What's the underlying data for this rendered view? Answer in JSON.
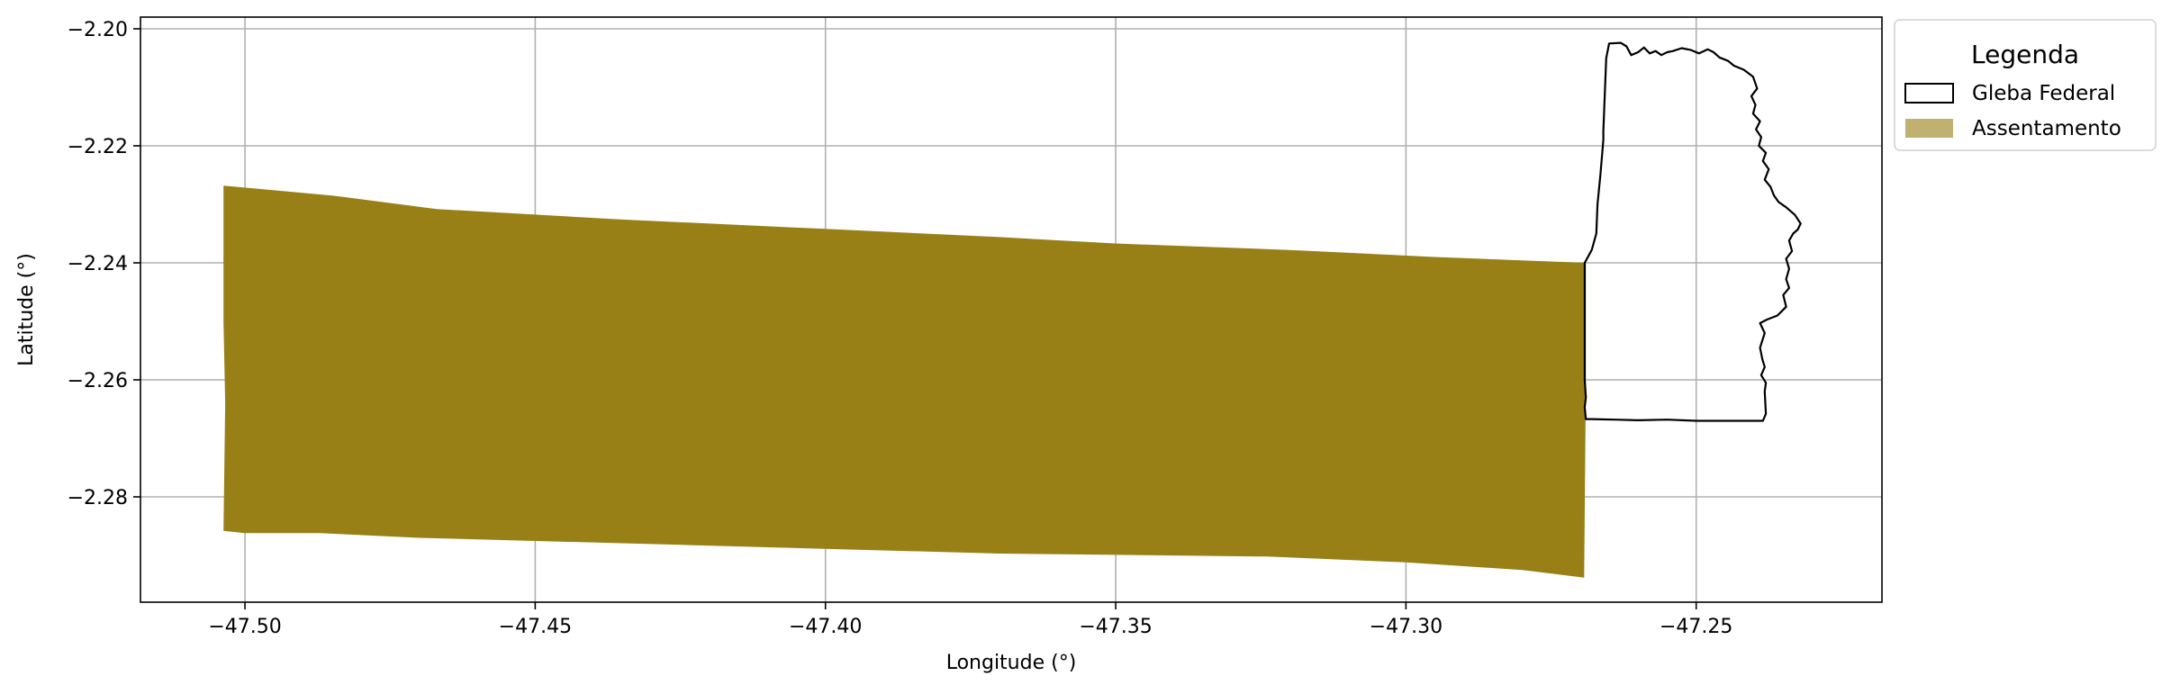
{
  "chart_data": {
    "type": "map",
    "xlabel": "Longitude (°)",
    "ylabel": "Latitude (°)",
    "xlim": [
      -47.518,
      -47.218
    ],
    "ylim": [
      -2.298,
      -2.198
    ],
    "xticks": [
      -47.5,
      -47.45,
      -47.4,
      -47.35,
      -47.3,
      -47.25
    ],
    "xtick_labels": [
      "−47.50",
      "−47.45",
      "−47.40",
      "−47.35",
      "−47.30",
      "−47.25"
    ],
    "yticks": [
      -2.2,
      -2.22,
      -2.24,
      -2.26,
      -2.28
    ],
    "ytick_labels": [
      "−2.20",
      "−2.22",
      "−2.24",
      "−2.26",
      "−2.28"
    ],
    "grid": true,
    "legend": {
      "title": "Legenda",
      "placement": "outside-upper-right",
      "entries": [
        {
          "label": "Gleba Federal",
          "style": "outline",
          "edge_color": "#000000",
          "face_color": "#ffffff"
        },
        {
          "label": "Assentamento",
          "style": "fill",
          "face_color": "#c0b170"
        }
      ]
    },
    "layers": [
      {
        "name": "Assentamento",
        "fill": "#988017",
        "polygon": [
          [
            -47.5037,
            -2.2268
          ],
          [
            -47.485,
            -2.2285
          ],
          [
            -47.467,
            -2.2308
          ],
          [
            -47.435,
            -2.2326
          ],
          [
            -47.4,
            -2.2342
          ],
          [
            -47.37,
            -2.2356
          ],
          [
            -47.35,
            -2.2367
          ],
          [
            -47.32,
            -2.2378
          ],
          [
            -47.295,
            -2.239
          ],
          [
            -47.269,
            -2.24
          ],
          [
            -47.269,
            -2.26
          ],
          [
            -47.2693,
            -2.2938
          ],
          [
            -47.28,
            -2.2925
          ],
          [
            -47.3,
            -2.2912
          ],
          [
            -47.324,
            -2.2902
          ],
          [
            -47.37,
            -2.2897
          ],
          [
            -47.425,
            -2.2882
          ],
          [
            -47.47,
            -2.287
          ],
          [
            -47.487,
            -2.2862
          ],
          [
            -47.5,
            -2.2862
          ],
          [
            -47.5037,
            -2.2858
          ],
          [
            -47.5034,
            -2.264
          ],
          [
            -47.5037,
            -2.25
          ],
          [
            -47.5037,
            -2.2268
          ]
        ]
      },
      {
        "name": "Gleba Federal",
        "stroke": "#000000",
        "fill": "none",
        "polygon": [
          [
            -47.265,
            -2.2025
          ],
          [
            -47.263,
            -2.2024
          ],
          [
            -47.262,
            -2.203
          ],
          [
            -47.2612,
            -2.2045
          ],
          [
            -47.26,
            -2.204
          ],
          [
            -47.259,
            -2.2032
          ],
          [
            -47.258,
            -2.2042
          ],
          [
            -47.257,
            -2.2038
          ],
          [
            -47.256,
            -2.2045
          ],
          [
            -47.255,
            -2.204
          ],
          [
            -47.254,
            -2.2038
          ],
          [
            -47.2525,
            -2.2033
          ],
          [
            -47.251,
            -2.2036
          ],
          [
            -47.2495,
            -2.2042
          ],
          [
            -47.248,
            -2.2035
          ],
          [
            -47.247,
            -2.204
          ],
          [
            -47.246,
            -2.2049
          ],
          [
            -47.2445,
            -2.2055
          ],
          [
            -47.2435,
            -2.2063
          ],
          [
            -47.2418,
            -2.207
          ],
          [
            -47.2402,
            -2.2082
          ],
          [
            -47.2395,
            -2.2102
          ],
          [
            -47.2405,
            -2.2115
          ],
          [
            -47.2398,
            -2.213
          ],
          [
            -47.2402,
            -2.2145
          ],
          [
            -47.239,
            -2.2158
          ],
          [
            -47.2397,
            -2.2172
          ],
          [
            -47.2388,
            -2.2185
          ],
          [
            -47.2392,
            -2.22
          ],
          [
            -47.238,
            -2.2212
          ],
          [
            -47.2385,
            -2.2226
          ],
          [
            -47.2375,
            -2.224
          ],
          [
            -47.2382,
            -2.2258
          ],
          [
            -47.2372,
            -2.227
          ],
          [
            -47.2366,
            -2.2285
          ],
          [
            -47.2358,
            -2.2296
          ],
          [
            -47.2345,
            -2.2305
          ],
          [
            -47.233,
            -2.2318
          ],
          [
            -47.232,
            -2.2333
          ],
          [
            -47.2325,
            -2.2343
          ],
          [
            -47.2333,
            -2.235
          ],
          [
            -47.234,
            -2.2362
          ],
          [
            -47.2335,
            -2.238
          ],
          [
            -47.2345,
            -2.2393
          ],
          [
            -47.234,
            -2.241
          ],
          [
            -47.2345,
            -2.2428
          ],
          [
            -47.234,
            -2.2443
          ],
          [
            -47.235,
            -2.2455
          ],
          [
            -47.2345,
            -2.2475
          ],
          [
            -47.236,
            -2.249
          ],
          [
            -47.2378,
            -2.2497
          ],
          [
            -47.239,
            -2.2503
          ],
          [
            -47.2382,
            -2.252
          ],
          [
            -47.239,
            -2.2545
          ],
          [
            -47.2386,
            -2.2565
          ],
          [
            -47.2382,
            -2.2578
          ],
          [
            -47.2388,
            -2.2592
          ],
          [
            -47.238,
            -2.2605
          ],
          [
            -47.2382,
            -2.262
          ],
          [
            -47.238,
            -2.2658
          ],
          [
            -47.2385,
            -2.267
          ],
          [
            -47.245,
            -2.267
          ],
          [
            -47.25,
            -2.267
          ],
          [
            -47.255,
            -2.2668
          ],
          [
            -47.26,
            -2.2669
          ],
          [
            -47.264,
            -2.2668
          ],
          [
            -47.268,
            -2.2667
          ],
          [
            -47.269,
            -2.2667
          ],
          [
            -47.2692,
            -2.2647
          ],
          [
            -47.269,
            -2.263
          ],
          [
            -47.2692,
            -2.26
          ],
          [
            -47.2692,
            -2.24
          ],
          [
            -47.268,
            -2.2378
          ],
          [
            -47.2672,
            -2.235
          ],
          [
            -47.267,
            -2.23
          ],
          [
            -47.2665,
            -2.225
          ],
          [
            -47.266,
            -2.219
          ],
          [
            -47.266,
            -2.2175
          ],
          [
            -47.2657,
            -2.21
          ],
          [
            -47.2655,
            -2.205
          ],
          [
            -47.265,
            -2.2025
          ]
        ]
      }
    ]
  }
}
